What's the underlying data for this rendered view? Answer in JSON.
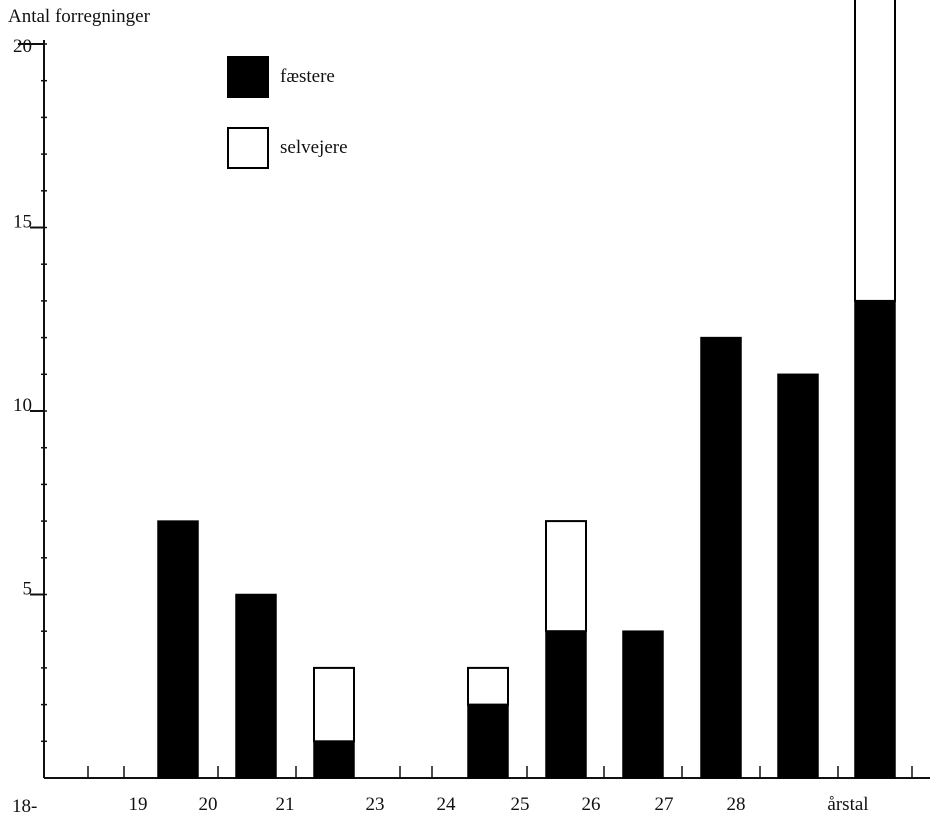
{
  "chart_data": {
    "type": "bar",
    "stacked": true,
    "ylabel": "Antal forregninger",
    "xlabel": "årstal",
    "x_prefix": "18-",
    "ylim": [
      0,
      20
    ],
    "yticks": [
      5,
      10,
      15,
      20
    ],
    "xticks": [
      "19",
      "20",
      "21",
      "23",
      "24",
      "25",
      "26",
      "27",
      "28"
    ],
    "series": [
      {
        "name": "fæstere",
        "color": "#000000",
        "values": [
          7,
          5,
          1,
          2,
          4,
          4,
          12,
          11,
          13
        ]
      },
      {
        "name": "selvejere",
        "color": "#ffffff",
        "values": [
          0,
          0,
          2,
          1,
          3,
          0,
          0,
          0,
          9
        ]
      }
    ],
    "legend": "top-left",
    "grid": false
  }
}
